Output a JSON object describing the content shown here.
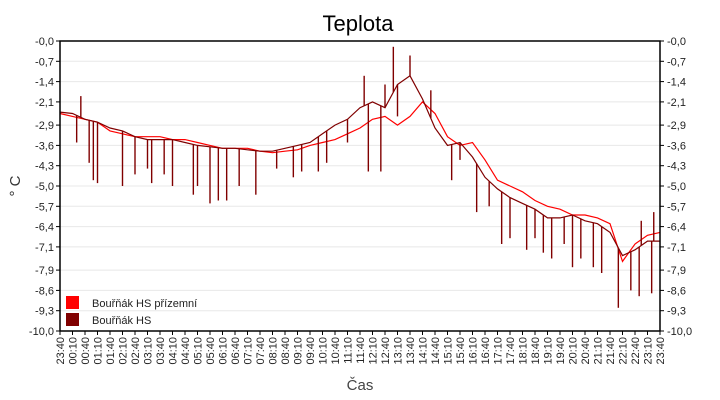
{
  "chart_data": {
    "type": "line",
    "title": "Teplota",
    "xlabel": "Čas",
    "ylabel": "° C",
    "ylim": [
      -10.0,
      0.0
    ],
    "grid": true,
    "legend_position": "bottom-left",
    "y_ticks": [
      "-0,0",
      "-0,7",
      "-1,4",
      "-2,1",
      "-2,9",
      "-3,6",
      "-4,3",
      "-5,0",
      "-5,7",
      "-6,4",
      "-7,1",
      "-7,9",
      "-8,6",
      "-9,3",
      "-10,0"
    ],
    "y_tick_values": [
      0,
      -0.7,
      -1.4,
      -2.1,
      -2.9,
      -3.6,
      -4.3,
      -5.0,
      -5.7,
      -6.4,
      -7.1,
      -7.9,
      -8.6,
      -9.3,
      -10.0
    ],
    "x": [
      "23:40",
      "00:10",
      "00:40",
      "01:10",
      "01:40",
      "02:10",
      "02:40",
      "03:10",
      "03:40",
      "04:10",
      "04:40",
      "05:10",
      "05:40",
      "06:10",
      "06:40",
      "07:10",
      "07:40",
      "08:10",
      "08:40",
      "09:10",
      "09:40",
      "10:10",
      "10:40",
      "11:10",
      "11:40",
      "12:10",
      "12:40",
      "13:10",
      "13:40",
      "14:10",
      "14:40",
      "15:10",
      "15:40",
      "16:10",
      "16:40",
      "17:10",
      "17:40",
      "18:10",
      "18:40",
      "19:10",
      "19:40",
      "20:10",
      "20:40",
      "21:10",
      "21:40",
      "22:10",
      "22:40",
      "23:10",
      "23:40"
    ],
    "series": [
      {
        "name": "Bouřňák HS přízemní",
        "color": "#ff0000",
        "values": [
          -2.5,
          -2.6,
          -2.7,
          -2.8,
          -3.1,
          -3.2,
          -3.3,
          -3.3,
          -3.3,
          -3.4,
          -3.4,
          -3.5,
          -3.6,
          -3.7,
          -3.7,
          -3.7,
          -3.8,
          -3.85,
          -3.8,
          -3.75,
          -3.6,
          -3.5,
          -3.4,
          -3.2,
          -3.0,
          -2.7,
          -2.6,
          -2.9,
          -2.6,
          -2.1,
          -2.5,
          -3.3,
          -3.6,
          -3.5,
          -4.1,
          -4.8,
          -5.0,
          -5.2,
          -5.5,
          -5.7,
          -5.8,
          -6.0,
          -6.0,
          -6.1,
          -6.3,
          -7.6,
          -7.0,
          -6.7,
          -6.6
        ]
      },
      {
        "name": "Bouřňák HS",
        "color": "#800000",
        "values": [
          -2.45,
          -2.5,
          -2.7,
          -2.8,
          -3.0,
          -3.1,
          -3.3,
          -3.4,
          -3.4,
          -3.4,
          -3.5,
          -3.6,
          -3.65,
          -3.7,
          -3.7,
          -3.75,
          -3.8,
          -3.8,
          -3.7,
          -3.6,
          -3.5,
          -3.2,
          -2.9,
          -2.7,
          -2.3,
          -2.1,
          -2.3,
          -1.5,
          -1.2,
          -2.0,
          -3.0,
          -3.6,
          -3.5,
          -4.0,
          -4.7,
          -5.1,
          -5.4,
          -5.6,
          -5.8,
          -6.1,
          -6.1,
          -6.0,
          -6.2,
          -6.3,
          -6.6,
          -7.4,
          -7.2,
          -6.9,
          -6.9
        ],
        "spikes": [
          [
            "00:20",
            -3.5
          ],
          [
            "00:30",
            -1.9
          ],
          [
            "00:50",
            -4.2
          ],
          [
            "01:00",
            -4.8
          ],
          [
            "01:10",
            -4.9
          ],
          [
            "02:10",
            -5.0
          ],
          [
            "02:40",
            -4.6
          ],
          [
            "03:10",
            -4.4
          ],
          [
            "03:20",
            -4.9
          ],
          [
            "03:50",
            -4.6
          ],
          [
            "04:10",
            -5.0
          ],
          [
            "05:00",
            -5.3
          ],
          [
            "05:10",
            -5.0
          ],
          [
            "05:40",
            -5.6
          ],
          [
            "06:00",
            -5.5
          ],
          [
            "06:20",
            -5.5
          ],
          [
            "06:50",
            -5.0
          ],
          [
            "07:30",
            -5.3
          ],
          [
            "08:20",
            -4.4
          ],
          [
            "09:00",
            -4.7
          ],
          [
            "09:20",
            -4.5
          ],
          [
            "10:00",
            -4.5
          ],
          [
            "10:20",
            -4.2
          ],
          [
            "11:10",
            -3.5
          ],
          [
            "11:50",
            -1.2
          ],
          [
            "12:00",
            -4.5
          ],
          [
            "12:30",
            -4.5
          ],
          [
            "12:40",
            -1.5
          ],
          [
            "13:00",
            -0.2
          ],
          [
            "13:10",
            -2.6
          ],
          [
            "13:40",
            -0.5
          ],
          [
            "14:30",
            -1.7
          ],
          [
            "15:20",
            -4.8
          ],
          [
            "15:40",
            -4.1
          ],
          [
            "16:20",
            -5.9
          ],
          [
            "16:50",
            -5.7
          ],
          [
            "17:20",
            -7.0
          ],
          [
            "17:40",
            -6.8
          ],
          [
            "18:20",
            -7.2
          ],
          [
            "18:40",
            -6.8
          ],
          [
            "19:00",
            -7.3
          ],
          [
            "19:20",
            -7.5
          ],
          [
            "19:50",
            -7.0
          ],
          [
            "20:10",
            -7.8
          ],
          [
            "20:30",
            -7.5
          ],
          [
            "21:00",
            -7.8
          ],
          [
            "21:20",
            -8.0
          ],
          [
            "22:00",
            -9.2
          ],
          [
            "22:30",
            -8.6
          ],
          [
            "22:50",
            -8.8
          ],
          [
            "22:55",
            -6.2
          ],
          [
            "23:20",
            -8.7
          ],
          [
            "23:25",
            -5.9
          ]
        ]
      }
    ]
  }
}
